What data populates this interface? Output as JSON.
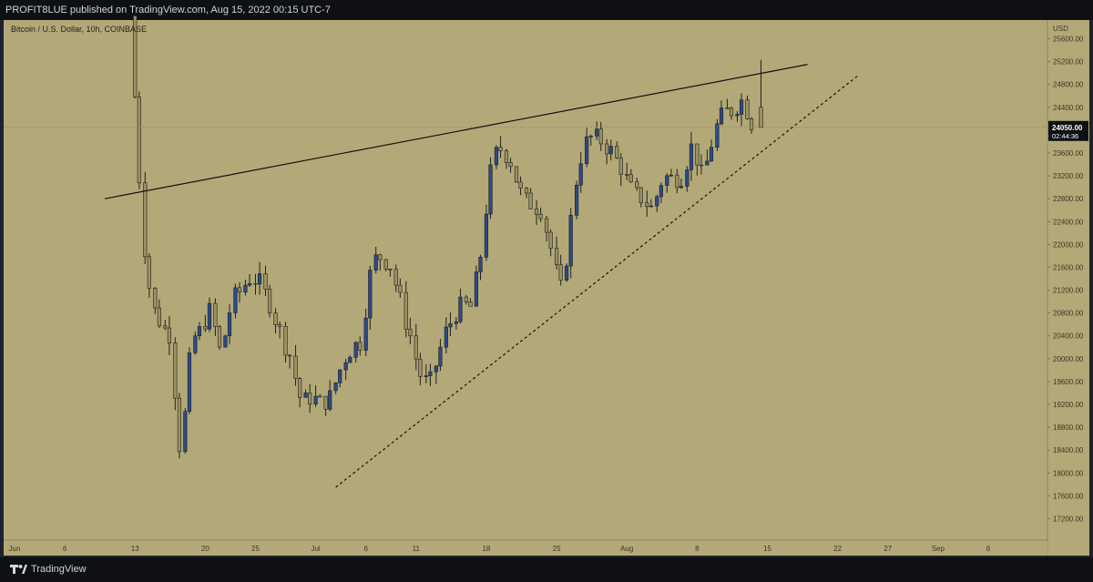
{
  "header": {
    "publisher_line": "PROFIT8LUE published on TradingView.com, Aug 15, 2022 00:15 UTC-7"
  },
  "footer": {
    "brand": "TradingView",
    "logo_icon": "tradingview-logo-icon"
  },
  "colors": {
    "background": "#b3a978",
    "up_candle": "#2c4a8a",
    "down_candle": "#9b9263",
    "wick": "#1f1f1f",
    "trendline": "#111111",
    "price_tag": "#0e1014"
  },
  "chart_data": {
    "type": "candlestick",
    "title": "Bitcoin / U.S. Dollar, 10h, COINBASE",
    "currency": "USD",
    "ylim": [
      17000,
      25800
    ],
    "y_ticks": [
      17200,
      17600,
      18000,
      18400,
      18800,
      19200,
      19600,
      20000,
      20400,
      20800,
      21200,
      21600,
      22000,
      22400,
      22800,
      23200,
      23600,
      24000,
      24400,
      24800,
      25200,
      25600
    ],
    "x_ticks": [
      {
        "label": "Jun",
        "date": "2022-06-01"
      },
      {
        "label": "6",
        "date": "2022-06-06"
      },
      {
        "label": "13",
        "date": "2022-06-13"
      },
      {
        "label": "20",
        "date": "2022-06-20"
      },
      {
        "label": "25",
        "date": "2022-06-25"
      },
      {
        "label": "Jul",
        "date": "2022-07-01"
      },
      {
        "label": "6",
        "date": "2022-07-06"
      },
      {
        "label": "11",
        "date": "2022-07-11"
      },
      {
        "label": "18",
        "date": "2022-07-18"
      },
      {
        "label": "25",
        "date": "2022-07-25"
      },
      {
        "label": "Aug",
        "date": "2022-08-01"
      },
      {
        "label": "8",
        "date": "2022-08-08"
      },
      {
        "label": "15",
        "date": "2022-08-15"
      },
      {
        "label": "22",
        "date": "2022-08-22"
      },
      {
        "label": "27",
        "date": "2022-08-27"
      },
      {
        "label": "Sep",
        "date": "2022-09-01"
      },
      {
        "label": "6",
        "date": "2022-09-06"
      }
    ],
    "current_price": "24050.00",
    "countdown": "02:44:36",
    "price_series_close": [
      {
        "date": "2022-06-13",
        "close": 26000
      },
      {
        "date": "2022-06-14",
        "close": 22600
      },
      {
        "date": "2022-06-15",
        "close": 21000
      },
      {
        "date": "2022-06-16",
        "close": 20600
      },
      {
        "date": "2022-06-17",
        "close": 20400
      },
      {
        "date": "2022-06-18",
        "close": 18100
      },
      {
        "date": "2022-06-19",
        "close": 20300
      },
      {
        "date": "2022-06-20",
        "close": 20500
      },
      {
        "date": "2022-06-21",
        "close": 20900
      },
      {
        "date": "2022-06-22",
        "close": 20000
      },
      {
        "date": "2022-06-23",
        "close": 21000
      },
      {
        "date": "2022-06-24",
        "close": 21200
      },
      {
        "date": "2022-06-25",
        "close": 21450
      },
      {
        "date": "2022-06-26",
        "close": 21300
      },
      {
        "date": "2022-06-27",
        "close": 20900
      },
      {
        "date": "2022-06-28",
        "close": 20400
      },
      {
        "date": "2022-06-29",
        "close": 20000
      },
      {
        "date": "2022-06-30",
        "close": 19200
      },
      {
        "date": "2022-07-01",
        "close": 19350
      },
      {
        "date": "2022-07-02",
        "close": 19200
      },
      {
        "date": "2022-07-03",
        "close": 19350
      },
      {
        "date": "2022-07-04",
        "close": 19900
      },
      {
        "date": "2022-07-05",
        "close": 20200
      },
      {
        "date": "2022-07-06",
        "close": 20300
      },
      {
        "date": "2022-07-07",
        "close": 21700
      },
      {
        "date": "2022-07-08",
        "close": 21800
      },
      {
        "date": "2022-07-09",
        "close": 21600
      },
      {
        "date": "2022-07-10",
        "close": 20900
      },
      {
        "date": "2022-07-11",
        "close": 20300
      },
      {
        "date": "2022-07-12",
        "close": 19600
      },
      {
        "date": "2022-07-13",
        "close": 19600
      },
      {
        "date": "2022-07-14",
        "close": 20300
      },
      {
        "date": "2022-07-15",
        "close": 20700
      },
      {
        "date": "2022-07-16",
        "close": 20950
      },
      {
        "date": "2022-07-17",
        "close": 20900
      },
      {
        "date": "2022-07-18",
        "close": 22000
      },
      {
        "date": "2022-07-19",
        "close": 23500
      },
      {
        "date": "2022-07-20",
        "close": 23700
      },
      {
        "date": "2022-07-21",
        "close": 23400
      },
      {
        "date": "2022-07-22",
        "close": 22800
      },
      {
        "date": "2022-07-23",
        "close": 22700
      },
      {
        "date": "2022-07-24",
        "close": 22600
      },
      {
        "date": "2022-07-25",
        "close": 21800
      },
      {
        "date": "2022-07-26",
        "close": 21100
      },
      {
        "date": "2022-07-27",
        "close": 22700
      },
      {
        "date": "2022-07-28",
        "close": 23700
      },
      {
        "date": "2022-07-29",
        "close": 23900
      },
      {
        "date": "2022-07-30",
        "close": 23800
      },
      {
        "date": "2022-07-31",
        "close": 23600
      },
      {
        "date": "2022-08-01",
        "close": 23300
      },
      {
        "date": "2022-08-02",
        "close": 22900
      },
      {
        "date": "2022-08-03",
        "close": 22800
      },
      {
        "date": "2022-08-04",
        "close": 22600
      },
      {
        "date": "2022-08-05",
        "close": 23200
      },
      {
        "date": "2022-08-06",
        "close": 23150
      },
      {
        "date": "2022-08-07",
        "close": 23200
      },
      {
        "date": "2022-08-08",
        "close": 23800
      },
      {
        "date": "2022-08-09",
        "close": 23100
      },
      {
        "date": "2022-08-10",
        "close": 23900
      },
      {
        "date": "2022-08-11",
        "close": 24300
      },
      {
        "date": "2022-08-12",
        "close": 24350
      },
      {
        "date": "2022-08-13",
        "close": 24550
      },
      {
        "date": "2022-08-14",
        "close": 24050
      }
    ],
    "trendlines": [
      {
        "name": "resistance",
        "style": "solid",
        "from": {
          "date": "2022-06-10",
          "price": 22800
        },
        "to": {
          "date": "2022-08-19",
          "price": 25150
        }
      },
      {
        "name": "support",
        "style": "dashed",
        "from": {
          "date": "2022-07-03",
          "price": 17750
        },
        "to": {
          "date": "2022-08-24",
          "price": 24950
        }
      }
    ],
    "grid": false
  }
}
